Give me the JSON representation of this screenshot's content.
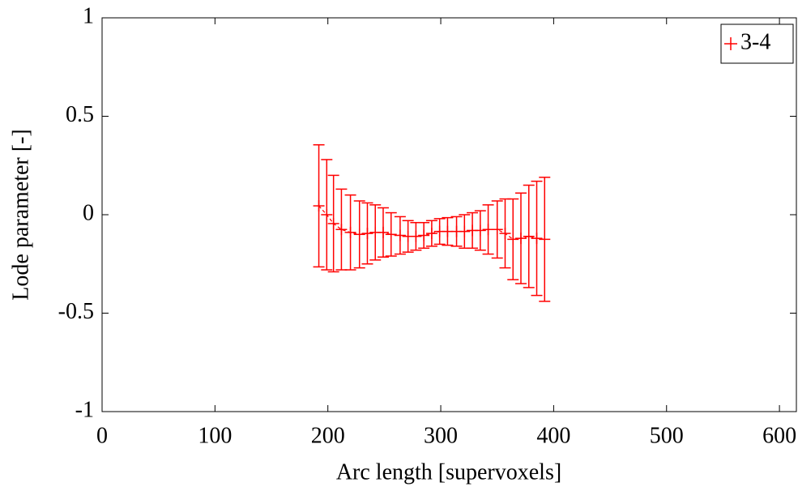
{
  "chart_data": {
    "type": "errorbar",
    "xlabel": "Arc length [supervoxels]",
    "ylabel": "Lode parameter [-]",
    "xlim": [
      0,
      615
    ],
    "ylim": [
      -1,
      1
    ],
    "xticks": [
      0,
      100,
      200,
      300,
      400,
      500,
      600
    ],
    "yticks": [
      -1,
      -0.5,
      0,
      0.5,
      1
    ],
    "legend": "top-right",
    "series": [
      {
        "name": "3-4",
        "color": "#ff0000",
        "x": [
          192,
          199,
          205,
          212,
          220,
          228,
          235,
          242,
          249,
          256,
          264,
          271,
          278,
          285,
          292,
          299,
          306,
          314,
          321,
          328,
          335,
          342,
          350,
          357,
          364,
          371,
          378,
          385,
          392
        ],
        "values": [
          0.045,
          0.0,
          -0.045,
          -0.075,
          -0.09,
          -0.1,
          -0.095,
          -0.09,
          -0.09,
          -0.1,
          -0.105,
          -0.11,
          -0.11,
          -0.105,
          -0.095,
          -0.085,
          -0.085,
          -0.085,
          -0.085,
          -0.08,
          -0.08,
          -0.075,
          -0.075,
          -0.095,
          -0.125,
          -0.12,
          -0.11,
          -0.12,
          -0.125
        ],
        "errors": [
          0.31,
          0.28,
          0.245,
          0.205,
          0.19,
          0.17,
          0.155,
          0.14,
          0.125,
          0.11,
          0.095,
          0.08,
          0.07,
          0.065,
          0.065,
          0.065,
          0.07,
          0.075,
          0.085,
          0.09,
          0.1,
          0.125,
          0.145,
          0.175,
          0.205,
          0.23,
          0.26,
          0.29,
          0.315
        ]
      }
    ]
  }
}
